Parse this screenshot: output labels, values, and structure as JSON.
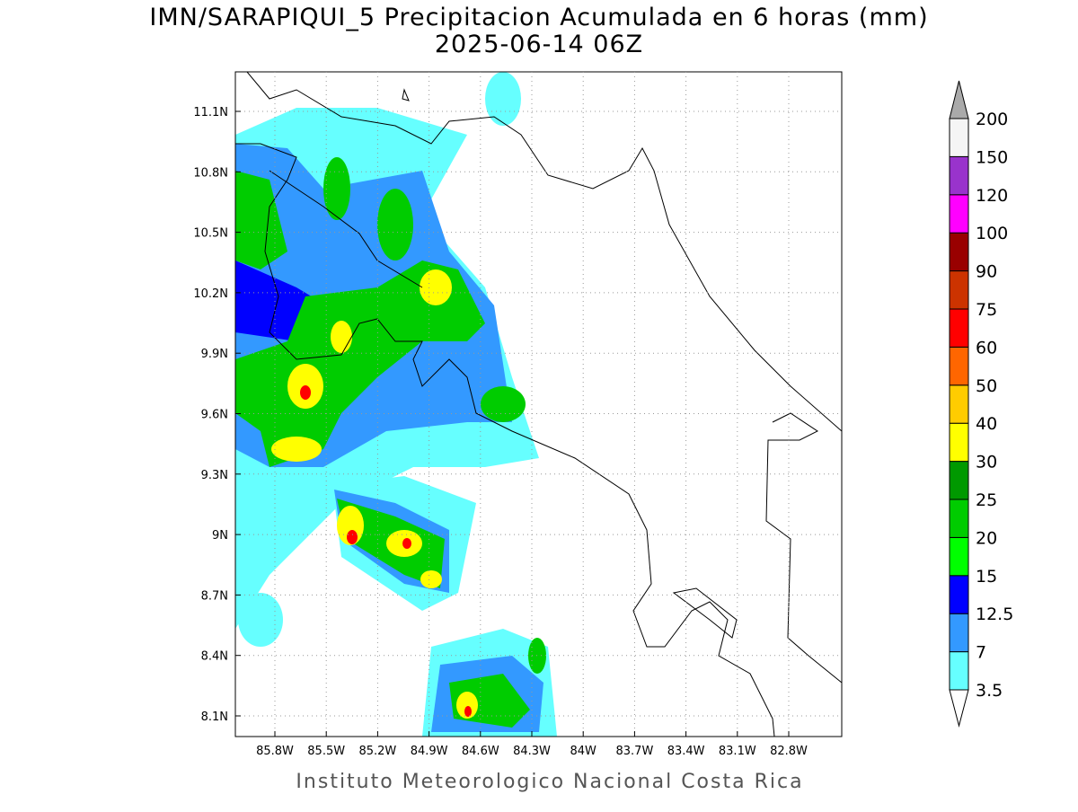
{
  "title": "IMN/SARAPIQUI_5 Precipitacion Acumulada en 6 horas (mm)",
  "subtitle": "2025-06-14 06Z",
  "footer": "Instituto Meteorologico Nacional Costa Rica",
  "lon_ticks": [
    {
      "value": -85.8,
      "label": "85.8W"
    },
    {
      "value": -85.5,
      "label": "85.5W"
    },
    {
      "value": -85.2,
      "label": "85.2W"
    },
    {
      "value": -84.9,
      "label": "84.9W"
    },
    {
      "value": -84.6,
      "label": "84.6W"
    },
    {
      "value": -84.3,
      "label": "84.3W"
    },
    {
      "value": -84,
      "label": "84W"
    },
    {
      "value": -83.7,
      "label": "83.7W"
    },
    {
      "value": -83.4,
      "label": "83.4W"
    },
    {
      "value": -83.1,
      "label": "83.1W"
    },
    {
      "value": -82.8,
      "label": "82.8W"
    }
  ],
  "lat_ticks": [
    {
      "value": 8.1,
      "label": "8.1N"
    },
    {
      "value": 8.4,
      "label": "8.4N"
    },
    {
      "value": 8.7,
      "label": "8.7N"
    },
    {
      "value": 9,
      "label": "9N"
    },
    {
      "value": 9.3,
      "label": "9.3N"
    },
    {
      "value": 9.6,
      "label": "9.6N"
    },
    {
      "value": 9.9,
      "label": "9.9N"
    },
    {
      "value": 10.2,
      "label": "10.2N"
    },
    {
      "value": 10.5,
      "label": "10.5N"
    },
    {
      "value": 10.8,
      "label": "10.8N"
    },
    {
      "value": 11.1,
      "label": "11.1N"
    }
  ],
  "colorbar": {
    "levels": [
      3.5,
      7,
      12.5,
      15,
      20,
      25,
      30,
      40,
      50,
      60,
      75,
      90,
      100,
      120,
      150,
      200
    ],
    "colors": [
      "#66ffff",
      "#3399ff",
      "#0000ff",
      "#00ff00",
      "#00cc00",
      "#009900",
      "#ffff00",
      "#ffcc00",
      "#ff6600",
      "#ff0000",
      "#cc3300",
      "#990000",
      "#ff00ff",
      "#9933cc",
      "#f5f5f5"
    ],
    "under_color": "#ffffff",
    "over_color": "#aaaaaa"
  }
}
